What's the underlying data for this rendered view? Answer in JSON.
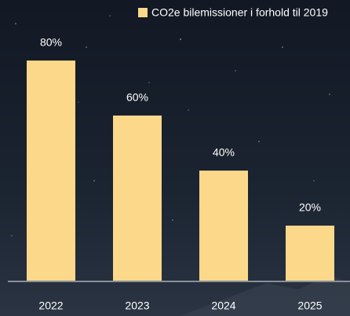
{
  "chart_data": {
    "type": "bar",
    "legend_label": "CO2e bilemissioner i forhold til 2019",
    "categories": [
      "2022",
      "2023",
      "2024",
      "2025"
    ],
    "values": [
      80,
      60,
      40,
      20
    ],
    "value_labels": [
      "80%",
      "60%",
      "40%",
      "20%"
    ],
    "color": "#fcd88b"
  }
}
